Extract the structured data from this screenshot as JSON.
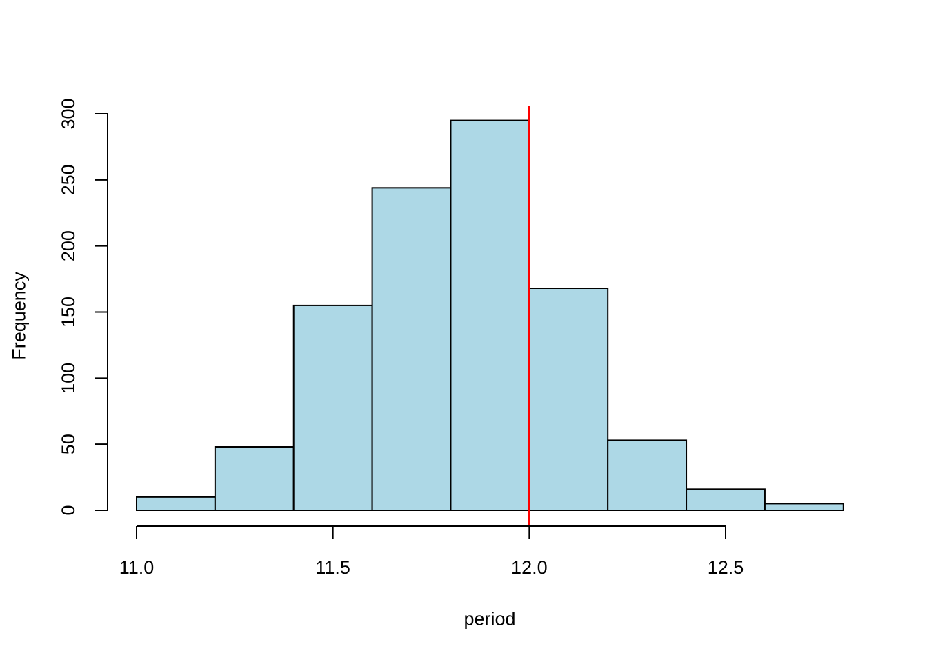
{
  "chart_data": {
    "type": "bar",
    "subtype": "histogram",
    "title": "",
    "xlabel": "period",
    "ylabel": "Frequency",
    "bin_start": 11.0,
    "bin_width": 0.2,
    "bin_edges": [
      11.0,
      11.2,
      11.4,
      11.6,
      11.8,
      12.0,
      12.2,
      12.4,
      12.6,
      12.8
    ],
    "counts": [
      10,
      48,
      155,
      244,
      295,
      168,
      53,
      16,
      5
    ],
    "x_ticks": [
      11.0,
      11.5,
      12.0,
      12.5
    ],
    "x_tick_labels": [
      "11.0",
      "11.5",
      "12.0",
      "12.5"
    ],
    "y_ticks": [
      0,
      50,
      100,
      150,
      200,
      250,
      300
    ],
    "y_tick_labels": [
      "0",
      "50",
      "100",
      "150",
      "200",
      "250",
      "300"
    ],
    "xlim": [
      11.0,
      12.5
    ],
    "ylim": [
      0,
      300
    ],
    "grid": false,
    "legend": null,
    "vline": {
      "x": 12.0,
      "color": "#FF0000"
    },
    "colors": {
      "bar_fill": "#ADD8E6",
      "bar_border": "#000000",
      "axis": "#000000",
      "text": "#000000",
      "background": "#FFFFFF"
    }
  }
}
